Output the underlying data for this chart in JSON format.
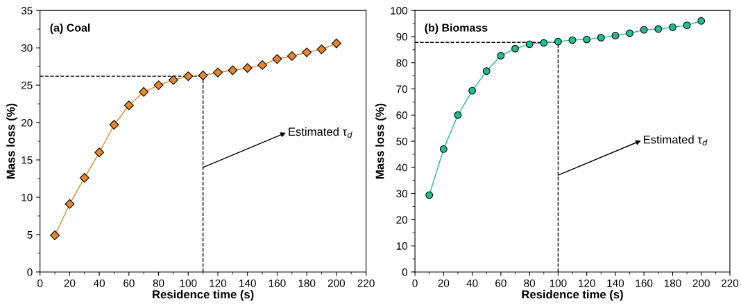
{
  "chart_data": [
    {
      "type": "line",
      "title": "(a) Coal",
      "xlabel": "Residence time (s)",
      "ylabel": "Mass loss (%)",
      "x": [
        10,
        20,
        30,
        40,
        50,
        60,
        70,
        80,
        90,
        100,
        110,
        120,
        130,
        140,
        150,
        160,
        170,
        180,
        190,
        200
      ],
      "series": [
        {
          "color": "#e8862a",
          "values": [
            4.9,
            9.1,
            12.6,
            16.0,
            19.7,
            22.3,
            24.1,
            25.0,
            25.7,
            26.2,
            26.3,
            26.7,
            27.0,
            27.3,
            27.7,
            28.5,
            28.9,
            29.4,
            29.8,
            30.6
          ]
        }
      ],
      "marker": "diamond",
      "line_style": "solid",
      "grid": false,
      "xlim": [
        0,
        220
      ],
      "xticks": [
        0,
        20,
        40,
        60,
        80,
        100,
        120,
        140,
        160,
        180,
        200,
        220
      ],
      "ylim": [
        0,
        35
      ],
      "yticks": [
        0,
        5,
        10,
        15,
        20,
        25,
        30,
        35
      ],
      "ref_lines": [
        {
          "axis": "x",
          "value": 110,
          "line_style": "dashed",
          "color": "#000000"
        },
        {
          "axis": "y",
          "value": 26.2,
          "line_style": "dashed",
          "color": "#000000"
        }
      ],
      "annotations": [
        {
          "text": "Estimated τ$_{d}$",
          "x": 110,
          "y": 14
        }
      ]
    },
    {
      "type": "line",
      "title": "(b) Biomass",
      "xlabel": "Residence time (s)",
      "ylabel": "Mass loss (%)",
      "x": [
        10,
        20,
        30,
        40,
        50,
        60,
        70,
        80,
        90,
        100,
        110,
        120,
        130,
        140,
        150,
        160,
        170,
        180,
        190,
        200
      ],
      "series": [
        {
          "color": "#1fbf8f",
          "values": [
            29.4,
            47.0,
            60.0,
            69.3,
            76.8,
            82.7,
            85.4,
            87.1,
            87.6,
            88.1,
            88.7,
            88.9,
            89.6,
            90.4,
            91.3,
            92.6,
            92.9,
            93.6,
            94.3,
            96.0
          ]
        }
      ],
      "marker": "circle",
      "line_style": "solid",
      "grid": false,
      "xlim": [
        0,
        220
      ],
      "xticks": [
        0,
        20,
        40,
        60,
        80,
        100,
        120,
        140,
        160,
        180,
        200,
        220
      ],
      "ylim": [
        0,
        100
      ],
      "yticks": [
        0,
        10,
        20,
        30,
        40,
        50,
        60,
        70,
        80,
        90,
        100
      ],
      "ref_lines": [
        {
          "axis": "x",
          "value": 100,
          "line_style": "dashed",
          "color": "#000000"
        },
        {
          "axis": "y",
          "value": 87.8,
          "line_style": "dashed",
          "color": "#000000"
        }
      ],
      "annotations": [
        {
          "text": "Estimated τ$_{d}$",
          "x": 100,
          "y": 37
        }
      ]
    }
  ]
}
